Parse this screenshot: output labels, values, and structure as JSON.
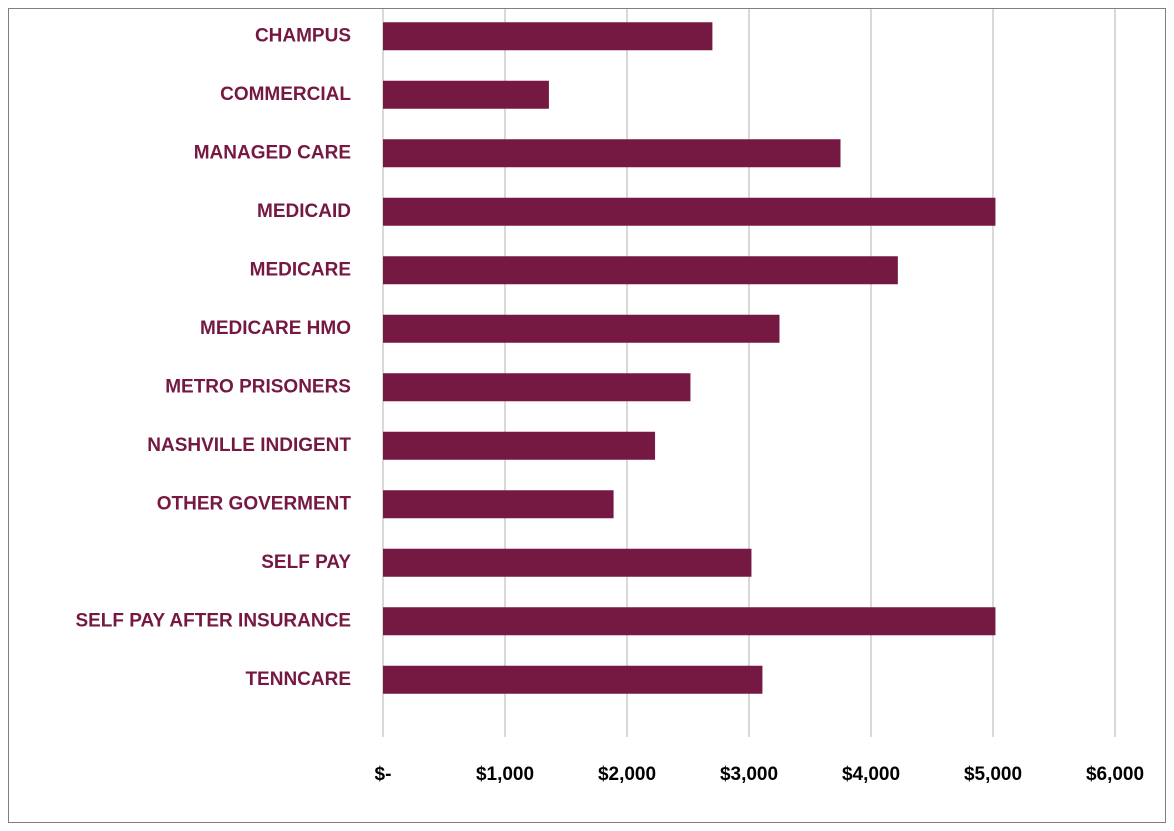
{
  "chart_data": {
    "type": "barh",
    "categories": [
      "CHAMPUS",
      "COMMERCIAL",
      "MANAGED CARE",
      "MEDICAID",
      "MEDICARE",
      "MEDICARE HMO",
      "METRO PRISONERS",
      "NASHVILLE INDIGENT",
      "OTHER GOVERMENT",
      "SELF PAY",
      "SELF PAY AFTER INSURANCE",
      "TENNCARE"
    ],
    "values": [
      2700,
      1360,
      3750,
      5020,
      4220,
      3250,
      2520,
      2230,
      1890,
      3020,
      5020,
      3110
    ],
    "color": "#751842",
    "xlim": [
      0,
      6000
    ],
    "xticks": [
      {
        "value": 0,
        "label": "$-"
      },
      {
        "value": 1000,
        "label": "$1,000"
      },
      {
        "value": 2000,
        "label": "$2,000"
      },
      {
        "value": 3000,
        "label": "$3,000"
      },
      {
        "value": 4000,
        "label": "$4,000"
      },
      {
        "value": 5000,
        "label": "$5,000"
      },
      {
        "value": 6000,
        "label": "$6,000"
      }
    ],
    "grid": true
  }
}
